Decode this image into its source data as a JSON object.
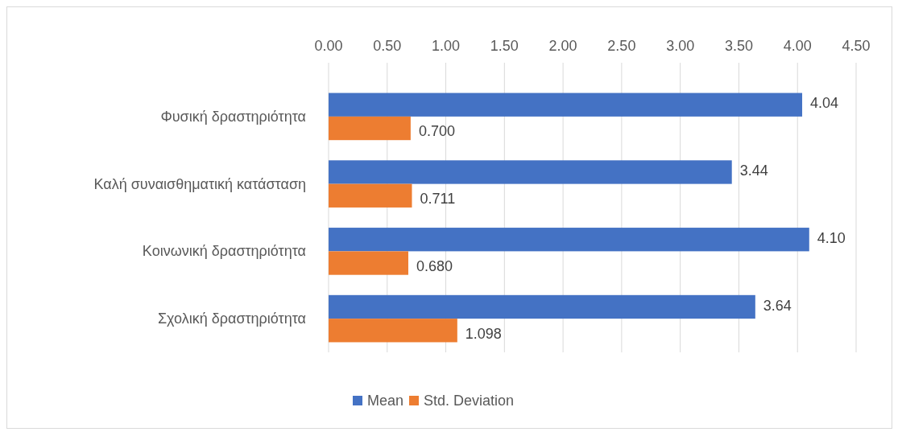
{
  "chart_data": {
    "type": "bar",
    "orientation": "horizontal",
    "categories": [
      "Φυσική δραστηριότητα",
      "Καλή συναισθηματική κατάσταση",
      "Κοινωνική δραστηριότητα",
      "Σχολική δραστηριότητα"
    ],
    "series": [
      {
        "name": "Mean",
        "color": "#4472c4",
        "values": [
          4.04,
          3.44,
          4.1,
          3.64
        ],
        "value_labels": [
          "4.04",
          "3.44",
          "4.10",
          "3.64"
        ]
      },
      {
        "name": "Std. Deviation",
        "color": "#ed7d31",
        "values": [
          0.7,
          0.711,
          0.68,
          1.098
        ],
        "value_labels": [
          "0.700",
          "0.711",
          "0.680",
          "1.098"
        ]
      }
    ],
    "xlim": [
      0,
      4.5
    ],
    "xticks": [
      {
        "value": 0,
        "label": "0.00"
      },
      {
        "value": 0.5,
        "label": "0.50"
      },
      {
        "value": 1,
        "label": "1.00"
      },
      {
        "value": 1.5,
        "label": "1.50"
      },
      {
        "value": 2,
        "label": "2.00"
      },
      {
        "value": 2.5,
        "label": "2.50"
      },
      {
        "value": 3,
        "label": "3.00"
      },
      {
        "value": 3.5,
        "label": "3.50"
      },
      {
        "value": 4,
        "label": "4.00"
      },
      {
        "value": 4.5,
        "label": "4.50"
      }
    ],
    "grid": "x",
    "legend": "bottom"
  }
}
